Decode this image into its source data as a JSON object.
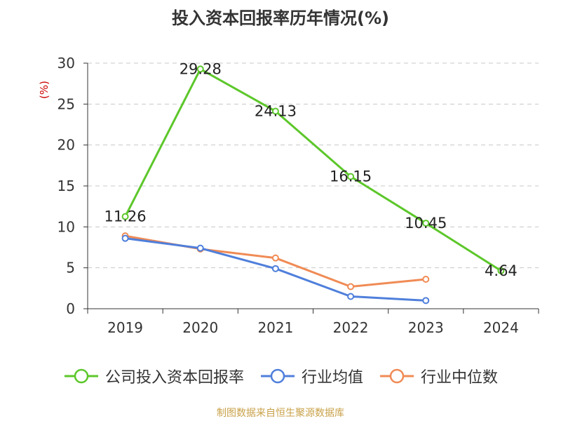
{
  "chart_data": {
    "type": "line",
    "title": "投入资本回报率历年情况(%)",
    "ylabel": "(%)",
    "xlabel": "",
    "categories": [
      "2019",
      "2020",
      "2021",
      "2022",
      "2023",
      "2024"
    ],
    "ylim": [
      0,
      30
    ],
    "yticks": [
      0,
      5,
      10,
      15,
      20,
      25,
      30
    ],
    "grid": true,
    "legend_position": "bottom",
    "series": [
      {
        "name": "公司投入资本回报率",
        "color": "#5cc72a",
        "values": [
          11.26,
          29.28,
          24.13,
          16.15,
          10.45,
          4.64
        ],
        "show_labels": true
      },
      {
        "name": "行业均值",
        "color": "#4f7fdb",
        "values": [
          8.6,
          7.4,
          4.9,
          1.5,
          1.0,
          null
        ],
        "show_labels": false
      },
      {
        "name": "行业中位数",
        "color": "#f08b55",
        "values": [
          8.9,
          7.3,
          6.2,
          2.7,
          3.6,
          null
        ],
        "show_labels": false
      }
    ]
  },
  "source_note": "制图数据来自恒生聚源数据库"
}
